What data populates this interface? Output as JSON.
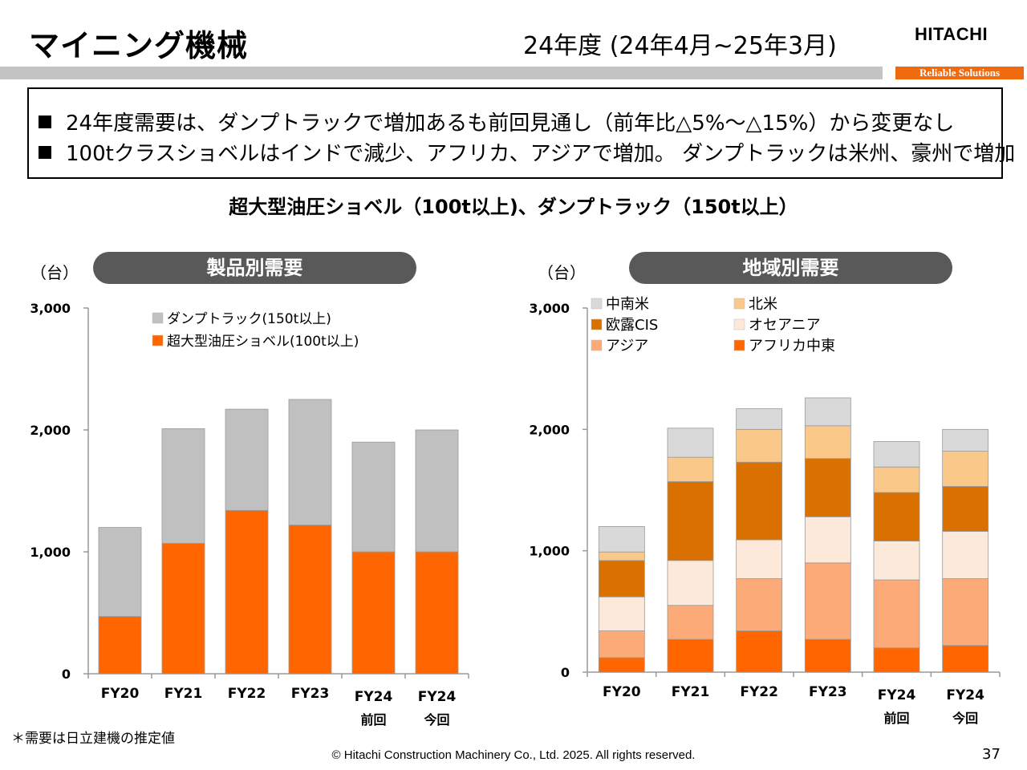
{
  "header": {
    "title": "マイニング機械",
    "period": "24年度 (24年4月~25年3月)",
    "logo": "HITACHI",
    "tagline": "Reliable Solutions"
  },
  "summary": [
    "24年度需要は、ダンプトラックで増加あるも前回見通し（前年比△5%～△15%）から変更なし",
    "100tクラスショベルはインドで減少、アフリカ、アジアで増加。 ダンプトラックは米州、豪州で増加"
  ],
  "subtitle": "超大型油圧ショベル（100t以上)、ダンプトラック（150t以上）",
  "footnote": "＊需要は日立建機の推定値",
  "copyright": "© Hitachi Construction Machinery Co., Ltd. 2025. All rights reserved.",
  "page_number": "37",
  "chart_data": [
    {
      "type": "bar",
      "stacked": true,
      "title": "製品別需要",
      "ylabel": "（台）",
      "categories": [
        "FY20",
        "FY21",
        "FY22",
        "FY23",
        "FY24",
        "FY24"
      ],
      "category_sublabels": [
        "",
        "",
        "",
        "",
        "前回",
        "今回"
      ],
      "ylim": [
        0,
        3000
      ],
      "yticks": [
        "3,000",
        "2,000",
        "1,000",
        "0"
      ],
      "legend_position": "top-center",
      "series": [
        {
          "name": "超大型油圧ショベル(100t以上)",
          "color": "#ff6600",
          "values": [
            470,
            1070,
            1340,
            1220,
            1000,
            1000
          ]
        },
        {
          "name": "ダンプトラック(150t以上)",
          "color": "#c0c0c0",
          "values": [
            730,
            940,
            830,
            1030,
            900,
            1000
          ]
        }
      ]
    },
    {
      "type": "bar",
      "stacked": true,
      "title": "地域別需要",
      "ylabel": "（台）",
      "categories": [
        "FY20",
        "FY21",
        "FY22",
        "FY23",
        "FY24",
        "FY24"
      ],
      "category_sublabels": [
        "",
        "",
        "",
        "",
        "前回",
        "今回"
      ],
      "ylim": [
        0,
        3000
      ],
      "yticks": [
        "3,000",
        "2,000",
        "1,000",
        "0"
      ],
      "legend_position": "top-left",
      "series": [
        {
          "name": "アフリカ中東",
          "color": "#ff6600",
          "values": [
            120,
            270,
            340,
            270,
            200,
            220
          ]
        },
        {
          "name": "アジア",
          "color": "#fbaa78",
          "values": [
            220,
            280,
            430,
            630,
            560,
            550
          ]
        },
        {
          "name": "オセアニア",
          "color": "#fde9d9",
          "values": [
            280,
            370,
            320,
            380,
            320,
            390
          ]
        },
        {
          "name": "欧露CIS",
          "color": "#d97000",
          "values": [
            300,
            650,
            640,
            480,
            400,
            370
          ]
        },
        {
          "name": "北米",
          "color": "#fac98a",
          "values": [
            70,
            200,
            270,
            270,
            210,
            290
          ]
        },
        {
          "name": "中南米",
          "color": "#d9d9d9",
          "values": [
            210,
            240,
            170,
            230,
            210,
            180
          ]
        }
      ],
      "legend_order": [
        "中南米",
        "北米",
        "欧露CIS",
        "オセアニア",
        "アジア",
        "アフリカ中東"
      ]
    }
  ]
}
